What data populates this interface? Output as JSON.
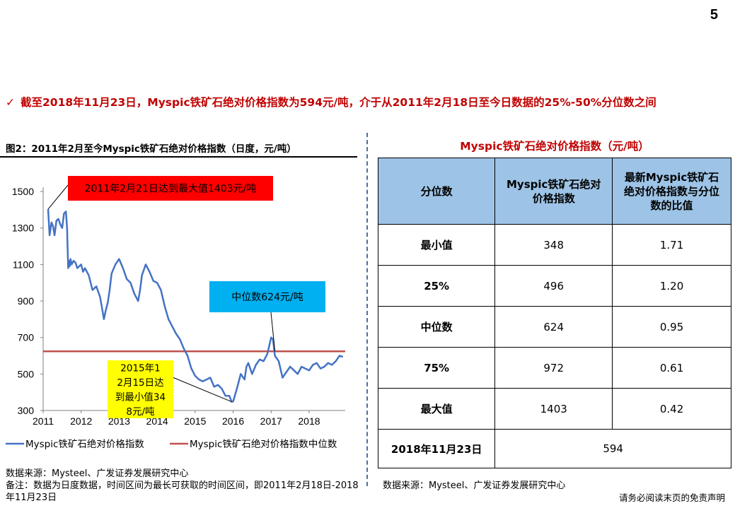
{
  "page_number": "5",
  "headline": {
    "check": "✓",
    "text": "截至2018年11月23日，Myspic铁矿石绝对价格指数为594元/吨，介于从2011年2月18日至今日数据的25%-50%分位数之间"
  },
  "figure": {
    "title": "图2：2011年2月至今Myspic铁矿石绝对价格指数（日度，元/吨）",
    "source": "数据来源：Mysteel、广发证券发展研究中心",
    "note": "备注：数据为日度数据，时间区间为最长可获取的时间区间，即2011年2月18日-2018年11月23日"
  },
  "chart_data": {
    "type": "line",
    "title": "图2：2011年2月至今Myspic铁矿石绝对价格指数（日度，元/吨）",
    "xlabel": "",
    "ylabel": "",
    "ylim": [
      300,
      1500
    ],
    "xlim": [
      2011.0,
      2018.95
    ],
    "yticks": [
      "1500",
      "1300",
      "1100",
      "900",
      "700",
      "500",
      "300"
    ],
    "xticks": [
      "2011",
      "2012",
      "2013",
      "2014",
      "2015",
      "2016",
      "2017",
      "2018"
    ],
    "grid": false,
    "legend_position": "bottom",
    "colors": {
      "series": "#4472C4",
      "median": "#C0504D"
    },
    "series": [
      {
        "name": "Myspic铁矿石绝对价格指数",
        "x": [
          2011.13,
          2011.17,
          2011.22,
          2011.26,
          2011.3,
          2011.35,
          2011.4,
          2011.45,
          2011.5,
          2011.55,
          2011.6,
          2011.63,
          2011.66,
          2011.68,
          2011.7,
          2011.72,
          2011.75,
          2011.8,
          2011.85,
          2011.9,
          2012.0,
          2012.05,
          2012.1,
          2012.2,
          2012.3,
          2012.4,
          2012.5,
          2012.6,
          2012.65,
          2012.7,
          2012.75,
          2012.8,
          2012.9,
          2013.0,
          2013.1,
          2013.2,
          2013.3,
          2013.4,
          2013.5,
          2013.55,
          2013.6,
          2013.7,
          2013.8,
          2013.9,
          2014.0,
          2014.1,
          2014.2,
          2014.3,
          2014.4,
          2014.5,
          2014.6,
          2014.7,
          2014.8,
          2014.9,
          2015.0,
          2015.1,
          2015.2,
          2015.3,
          2015.4,
          2015.5,
          2015.6,
          2015.7,
          2015.8,
          2015.9,
          2015.96,
          2016.0,
          2016.1,
          2016.2,
          2016.3,
          2016.35,
          2016.4,
          2016.5,
          2016.6,
          2016.7,
          2016.8,
          2016.9,
          2017.0,
          2017.05,
          2017.1,
          2017.2,
          2017.3,
          2017.4,
          2017.5,
          2017.6,
          2017.7,
          2017.8,
          2017.9,
          2018.0,
          2018.1,
          2018.2,
          2018.3,
          2018.4,
          2018.5,
          2018.6,
          2018.7,
          2018.8,
          2018.89
        ],
        "values": [
          1403,
          1260,
          1330,
          1310,
          1260,
          1340,
          1350,
          1320,
          1300,
          1380,
          1390,
          1300,
          1080,
          1120,
          1090,
          1130,
          1100,
          1120,
          1110,
          1080,
          1100,
          1060,
          1080,
          1040,
          960,
          980,
          920,
          800,
          850,
          890,
          960,
          1050,
          1100,
          1130,
          1080,
          1020,
          1000,
          940,
          900,
          960,
          1040,
          1100,
          1060,
          1010,
          1000,
          960,
          870,
          800,
          760,
          720,
          690,
          640,
          600,
          530,
          490,
          470,
          460,
          470,
          480,
          430,
          440,
          420,
          380,
          380,
          348,
          350,
          420,
          500,
          470,
          540,
          560,
          500,
          550,
          580,
          570,
          610,
          700,
          690,
          600,
          570,
          480,
          510,
          540,
          520,
          500,
          540,
          530,
          520,
          550,
          560,
          530,
          540,
          560,
          550,
          570,
          600,
          594
        ]
      },
      {
        "name": "Myspic铁矿石绝对价格指数中位数",
        "x": [
          2011.0,
          2018.95
        ],
        "values": [
          624,
          624
        ]
      }
    ],
    "annotations": [
      {
        "text": "2011年2月21日达到最大值1403元/吨",
        "x": 2011.13,
        "y": 1403,
        "bg": "#FF0000",
        "color": "#000000"
      },
      {
        "text": "中位数624元/吨",
        "x": 2017.1,
        "y": 624,
        "bg": "#00B0F0",
        "color": "#000000"
      },
      {
        "text": "2015年12月15日达到最小值348元/吨",
        "x": 2015.96,
        "y": 348,
        "bg": "#FFFF00",
        "color": "#000000"
      }
    ]
  },
  "table": {
    "title": "Myspic铁矿石绝对价格指数（元/吨）",
    "headers": [
      "分位数",
      "Myspic铁矿石绝对价格指数",
      "最新Myspic铁矿石绝对价格指数与分位数的比值"
    ],
    "rows": [
      {
        "label": "最小值",
        "value": "348",
        "ratio": "1.71"
      },
      {
        "label": "25%",
        "value": "496",
        "ratio": "1.20"
      },
      {
        "label": "中位数",
        "value": "624",
        "ratio": "0.95"
      },
      {
        "label": "75%",
        "value": "972",
        "ratio": "0.61"
      },
      {
        "label": "最大值",
        "value": "1403",
        "ratio": "0.42"
      }
    ],
    "latest": {
      "label": "2018年11月23日",
      "value": "594"
    },
    "source": "数据来源：Mysteel、广发证券发展研究中心",
    "header_bg": "#9DC3E6"
  },
  "disclaimer": "请务必阅读末页的免责声明"
}
